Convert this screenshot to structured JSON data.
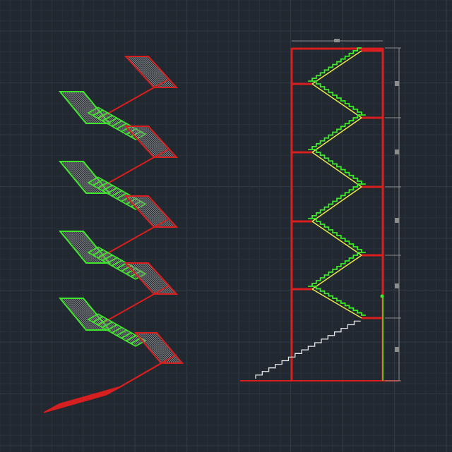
{
  "colors": {
    "background": "#212830",
    "grid_minor": "#29313b",
    "grid_major": "#323b46",
    "wall": "#d81e1e",
    "stair_green": "#3ee82a",
    "stair_yellow": "#e8e84a",
    "hatch": "#8a8a8a",
    "ground_stairs": "#e6e6e6",
    "dimension": "#8c8c8c"
  },
  "isometric_view": {
    "levels": 4
  },
  "section_view": {
    "floors": 4
  }
}
